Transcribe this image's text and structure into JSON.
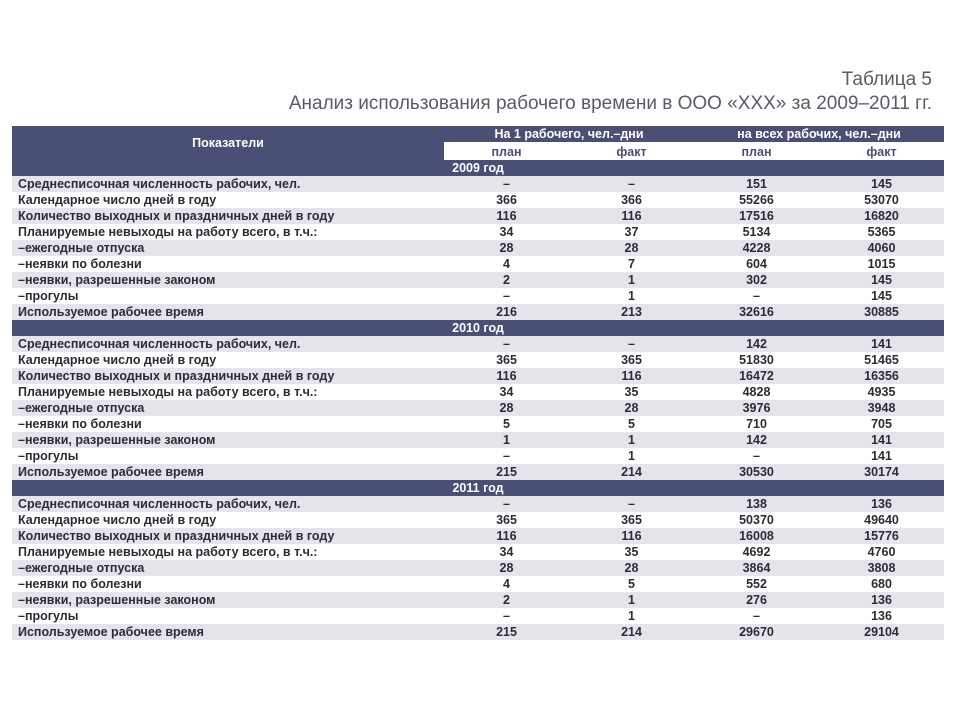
{
  "title": {
    "line1": "Таблица 5",
    "line2": "Анализ использования рабочего времени в ООО «XXX» за 2009–2011 гг."
  },
  "table": {
    "header": {
      "indicator": "Показатели",
      "group1": "На 1 рабочего, чел.–дни",
      "group2": "на всех рабочих, чел.–дни",
      "plan": "план",
      "fact": "факт"
    },
    "sections": [
      {
        "year": "2009 год",
        "rows": [
          {
            "name": "Среднесписочная численность рабочих, чел.",
            "v": [
              "–",
              "–",
              "151",
              "145"
            ]
          },
          {
            "name": "Календарное число дней в году",
            "v": [
              "366",
              "366",
              "55266",
              "53070"
            ]
          },
          {
            "name": "Количество выходных и праздничных дней в году",
            "v": [
              "116",
              "116",
              "17516",
              "16820"
            ]
          },
          {
            "name": "Планируемые невыходы на работу всего, в т.ч.:",
            "v": [
              "34",
              "37",
              "5134",
              "5365"
            ]
          },
          {
            "name": "–ежегодные отпуска",
            "v": [
              "28",
              "28",
              "4228",
              "4060"
            ]
          },
          {
            "name": "–неявки по болезни",
            "v": [
              "4",
              "7",
              "604",
              "1015"
            ]
          },
          {
            "name": "–неявки, разрешенные законом",
            "v": [
              "2",
              "1",
              "302",
              "145"
            ]
          },
          {
            "name": "–прогулы",
            "v": [
              "–",
              "1",
              "–",
              "145"
            ]
          },
          {
            "name": "Используемое рабочее время",
            "v": [
              "216",
              "213",
              "32616",
              "30885"
            ]
          }
        ]
      },
      {
        "year": "2010 год",
        "rows": [
          {
            "name": "Среднесписочная численность рабочих, чел.",
            "v": [
              "–",
              "–",
              "142",
              "141"
            ]
          },
          {
            "name": "Календарное число дней в году",
            "v": [
              "365",
              "365",
              "51830",
              "51465"
            ]
          },
          {
            "name": "Количество выходных и праздничных дней в году",
            "v": [
              "116",
              "116",
              "16472",
              "16356"
            ]
          },
          {
            "name": "Планируемые невыходы на работу всего, в т.ч.:",
            "v": [
              "34",
              "35",
              "4828",
              "4935"
            ]
          },
          {
            "name": "–ежегодные отпуска",
            "v": [
              "28",
              "28",
              "3976",
              "3948"
            ]
          },
          {
            "name": "–неявки по болезни",
            "v": [
              "5",
              "5",
              "710",
              "705"
            ]
          },
          {
            "name": "–неявки, разрешенные законом",
            "v": [
              "1",
              "1",
              "142",
              "141"
            ]
          },
          {
            "name": "–прогулы",
            "v": [
              "–",
              "1",
              "–",
              "141"
            ]
          },
          {
            "name": "Используемое рабочее время",
            "v": [
              "215",
              "214",
              "30530",
              "30174"
            ]
          }
        ]
      },
      {
        "year": "2011 год",
        "rows": [
          {
            "name": "Среднесписочная численность рабочих, чел.",
            "v": [
              "–",
              "–",
              "138",
              "136"
            ]
          },
          {
            "name": "Календарное число дней в году",
            "v": [
              "365",
              "365",
              "50370",
              "49640"
            ]
          },
          {
            "name": "Количество выходных и праздничных дней в году",
            "v": [
              "116",
              "116",
              "16008",
              "15776"
            ]
          },
          {
            "name": "Планируемые невыходы на работу всего, в т.ч.:",
            "v": [
              "34",
              "35",
              "4692",
              "4760"
            ]
          },
          {
            "name": "–ежегодные отпуска",
            "v": [
              "28",
              "28",
              "3864",
              "3808"
            ]
          },
          {
            "name": "–неявки по болезни",
            "v": [
              "4",
              "5",
              "552",
              "680"
            ]
          },
          {
            "name": "–неявки, разрешенные законом",
            "v": [
              "2",
              "1",
              "276",
              "136"
            ]
          },
          {
            "name": "–прогулы",
            "v": [
              "–",
              "1",
              "–",
              "136"
            ]
          },
          {
            "name": "Используемое рабочее время",
            "v": [
              "215",
              "214",
              "29670",
              "29104"
            ]
          }
        ]
      }
    ]
  },
  "style": {
    "header_bg": "#4a4f76",
    "header_fg": "#ffffff",
    "row_alt_bg": "#e4e4ea",
    "row_plain_bg": "#ffffff",
    "title_color": "#595a6b",
    "text_color": "#2c2c38",
    "font_size_body": 12.5,
    "font_size_title": 19
  }
}
